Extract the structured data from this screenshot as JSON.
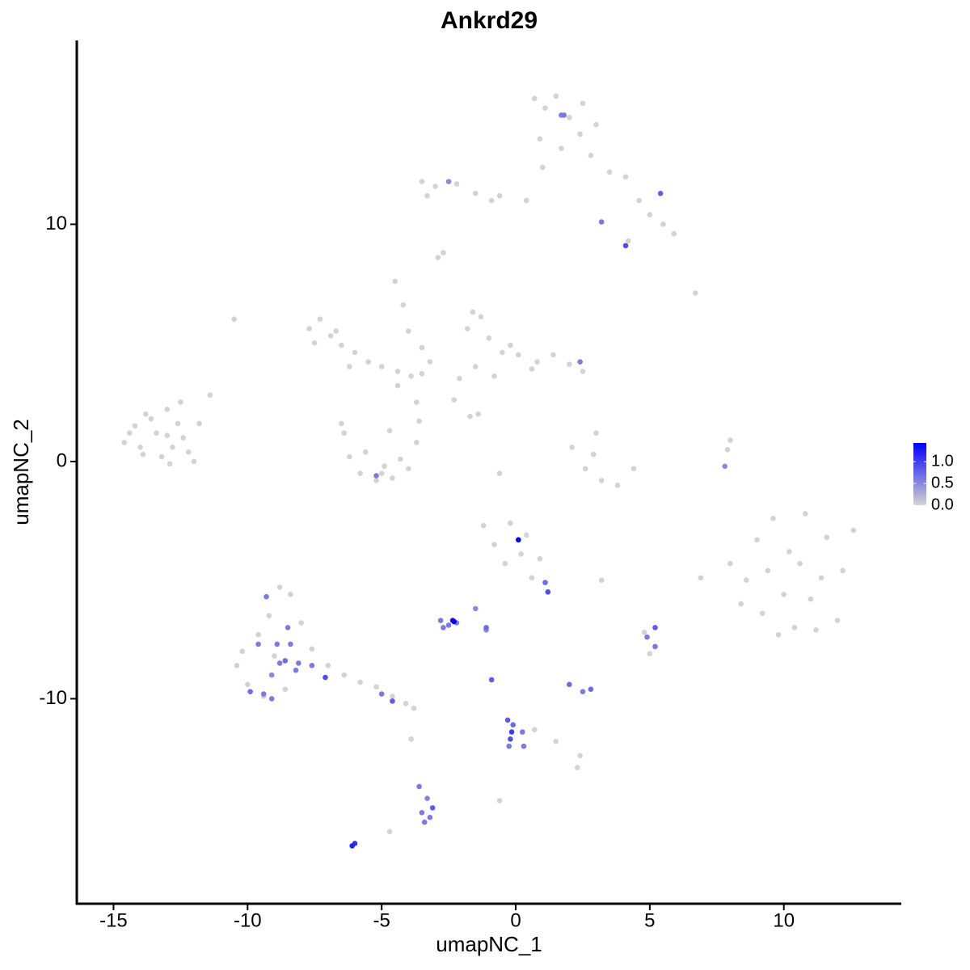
{
  "chart_data": {
    "type": "scatter",
    "title": "Ankrd29",
    "x_label": "umapNC_1",
    "y_label": "umapNC_2",
    "xlim": [
      -16.37,
      14.38
    ],
    "ylim": [
      -18.64,
      17.75
    ],
    "xticks": [
      -15,
      -10,
      -5,
      0,
      5,
      10
    ],
    "yticks": [
      -10,
      0,
      10
    ],
    "colorscale": [
      "#d3d3d3",
      "#0000ff"
    ],
    "colorlim": [
      0,
      1.43
    ],
    "colorticks": [
      {
        "value": 0,
        "label": "0.0"
      },
      {
        "value": 0.5,
        "label": "0.5"
      },
      {
        "value": 1,
        "label": "1.0"
      }
    ],
    "x": [
      -14.6,
      -14.2,
      -13.8,
      -13.4,
      -13.0,
      -12.6,
      -12.2,
      -14.0,
      -13.2,
      -12.4,
      -13.6,
      -12.8,
      -14.4,
      -12.0,
      -11.8,
      -11.4,
      -13.0,
      -12.5,
      -13.9,
      -12.9,
      -7.7,
      -7.3,
      -6.9,
      -6.5,
      -6.0,
      -5.5,
      -5.0,
      -4.4,
      -3.9,
      -3.5,
      -7.5,
      -6.7,
      -4.5,
      -4.2,
      -4.0,
      -3.5,
      -3.2,
      -4.4,
      -6.2,
      -3.7,
      -6.4,
      -6.2,
      -5.8,
      -5.2,
      -4.6,
      -4.0,
      -3.7,
      -5.6,
      -4.9,
      -4.3,
      -6.5,
      -3.6,
      -5.0,
      -4.7,
      -1.8,
      -1.3,
      -1.0,
      -0.5,
      0.1,
      0.8,
      1.4,
      2.0,
      2.5,
      -1.5,
      -0.8,
      -0.2,
      0.6,
      -2.1,
      -2.3,
      -1.6,
      0.7,
      1.1,
      1.5,
      2.0,
      2.5,
      3.0,
      0.9,
      1.7,
      2.4,
      2.8,
      3.5,
      4.1,
      4.6,
      5.0,
      5.5,
      5.9,
      4.2,
      1.0,
      0.4,
      -0.6,
      -1.5,
      -2.2,
      -3.0,
      -3.5,
      -3.3,
      -2.9,
      -2.7,
      -10.5,
      6.7,
      -0.9,
      8.0,
      8.6,
      9.2,
      9.8,
      10.4,
      11.0,
      11.6,
      12.2,
      12.6,
      8.4,
      9.0,
      9.6,
      10.2,
      10.8,
      11.4,
      12.0,
      10.0,
      11.2,
      9.4,
      10.6,
      -1.2,
      -0.8,
      -0.2,
      0.4,
      0.9,
      -0.4,
      0.2,
      2.1,
      2.6,
      3.2,
      3.8,
      4.4,
      3.0,
      2.9,
      -1.4,
      -1.7,
      -0.6,
      6.9,
      7.9,
      8.0,
      -10.4,
      -10.0,
      -9.6,
      -9.2,
      -8.8,
      -8.4,
      -8.0,
      -9.0,
      -8.6,
      -7.6,
      -7.0,
      -6.4,
      -5.8,
      -5.2,
      -4.6,
      -4.1,
      -3.8,
      -9.4,
      -10.2,
      -3.9,
      1.5,
      2.4,
      2.3,
      0.7,
      -0.6,
      3.2,
      5.0,
      4.8,
      -4.7,
      0.6,
      -2.8,
      -2.5,
      -2.2,
      -2.7,
      -2.35,
      -2.3,
      -1.5,
      -1.1,
      -3.6,
      -3.3,
      -3.5,
      -3.2,
      -3.4,
      -3.1,
      -6.0,
      -6.1,
      0.1,
      1.1,
      1.2,
      -0.9,
      -0.3,
      -0.15,
      -0.2,
      -0.25,
      2.0,
      2.5,
      2.8,
      5.2,
      4.9,
      5.2,
      1.7,
      1.8,
      -2.5,
      5.4,
      3.2,
      4.1,
      2.4,
      7.8,
      -5.2,
      -9.3,
      -9.6,
      -8.9,
      -8.5,
      -8.1,
      -9.1,
      -8.6,
      -9.9,
      -7.6,
      -7.1,
      -9.4,
      -9.1,
      -5.0,
      -4.6,
      -8.4,
      -8.8,
      -8.2,
      -1.1,
      0.3,
      0.25,
      -0.1
    ],
    "y": [
      0.8,
      1.5,
      2.0,
      1.2,
      2.2,
      1.6,
      0.4,
      0.6,
      0.2,
      1.0,
      1.8,
      0.6,
      1.2,
      0.0,
      1.6,
      2.8,
      1.1,
      2.5,
      0.3,
      -0.1,
      5.6,
      6.0,
      5.3,
      4.9,
      4.6,
      4.2,
      4.0,
      3.8,
      3.6,
      3.7,
      5.0,
      5.5,
      7.6,
      6.6,
      5.5,
      4.8,
      4.2,
      3.2,
      4.0,
      2.5,
      1.2,
      0.2,
      -0.5,
      -0.8,
      -0.7,
      -0.3,
      0.8,
      0.4,
      -0.2,
      0.1,
      1.6,
      1.7,
      -0.5,
      1.3,
      5.6,
      6.1,
      5.2,
      4.6,
      4.5,
      4.2,
      4.5,
      4.1,
      3.8,
      4.0,
      3.6,
      4.9,
      3.9,
      3.5,
      2.6,
      6.3,
      15.3,
      14.9,
      15.4,
      14.5,
      15.1,
      14.2,
      13.6,
      13.2,
      13.8,
      12.9,
      12.2,
      12.0,
      11.0,
      10.4,
      10.0,
      9.6,
      9.3,
      12.4,
      11.0,
      11.2,
      11.3,
      11.7,
      11.6,
      11.8,
      11.2,
      8.6,
      8.8,
      6.0,
      7.1,
      11.0,
      -4.3,
      -5.0,
      -6.4,
      -7.3,
      -7.0,
      -5.8,
      -3.2,
      -4.6,
      -2.9,
      -6.0,
      -3.3,
      -2.4,
      -3.8,
      -2.2,
      -4.9,
      -6.7,
      -5.6,
      -7.1,
      -4.6,
      -4.3,
      -2.7,
      -3.5,
      -2.6,
      -3.1,
      -4.1,
      -4.3,
      -3.9,
      0.6,
      -0.3,
      -0.8,
      -1.0,
      -0.3,
      1.2,
      0.3,
      2.0,
      1.9,
      -0.5,
      -4.9,
      0.5,
      0.9,
      -8.6,
      -9.4,
      -7.3,
      -6.5,
      -5.3,
      -5.6,
      -6.8,
      -8.2,
      -9.6,
      -7.9,
      -8.6,
      -9.0,
      -9.3,
      -9.5,
      -9.9,
      -10.2,
      -10.4,
      -9.9,
      -8.0,
      -11.7,
      -11.8,
      -12.4,
      -12.9,
      -11.3,
      -14.3,
      -5.0,
      -8.1,
      -7.2,
      -15.6,
      -4.9,
      -6.7,
      -6.9,
      -6.8,
      -7.0,
      -6.7,
      -6.75,
      -6.2,
      -7.1,
      -13.7,
      -14.2,
      -14.8,
      -15.0,
      -15.2,
      -14.6,
      -16.1,
      -16.2,
      -3.3,
      -5.1,
      -5.5,
      -9.2,
      -10.9,
      -11.4,
      -11.7,
      -12.0,
      -9.4,
      -9.7,
      -9.6,
      -7.0,
      -7.4,
      -7.8,
      14.6,
      14.6,
      11.8,
      11.3,
      10.1,
      9.1,
      4.2,
      -0.2,
      -0.6,
      -5.7,
      -7.7,
      -7.7,
      -7.0,
      -8.5,
      -9.0,
      -8.4,
      -9.7,
      -8.6,
      -9.1,
      -9.8,
      -10.0,
      -9.8,
      -10.1,
      -7.7,
      -8.5,
      -8.8,
      -7.0,
      -12.0,
      -11.4,
      -11.1
    ],
    "values": [
      0,
      0,
      0,
      0,
      0,
      0,
      0,
      0,
      0,
      0,
      0,
      0,
      0,
      0,
      0,
      0,
      0,
      0,
      0,
      0,
      0,
      0,
      0,
      0,
      0,
      0,
      0,
      0,
      0,
      0,
      0,
      0,
      0,
      0,
      0,
      0,
      0,
      0,
      0,
      0,
      0,
      0,
      0,
      0,
      0,
      0,
      0,
      0,
      0,
      0,
      0,
      0,
      0,
      0,
      0,
      0,
      0,
      0,
      0,
      0,
      0,
      0,
      0,
      0,
      0,
      0,
      0,
      0,
      0,
      0,
      0,
      0,
      0,
      0,
      0,
      0,
      0,
      0,
      0,
      0,
      0,
      0,
      0,
      0,
      0,
      0,
      0,
      0,
      0,
      0,
      0,
      0,
      0,
      0,
      0,
      0,
      0,
      0,
      0,
      0,
      0,
      0,
      0,
      0,
      0,
      0,
      0,
      0,
      0,
      0,
      0,
      0,
      0,
      0,
      0,
      0,
      0,
      0,
      0,
      0,
      0,
      0,
      0,
      0,
      0,
      0,
      0,
      0,
      0,
      0,
      0,
      0,
      0,
      0,
      0,
      0,
      0,
      0,
      0,
      0,
      0,
      0,
      0,
      0,
      0,
      0,
      0,
      0,
      0,
      0,
      0,
      0,
      0,
      0,
      0,
      0,
      0,
      0,
      0,
      0,
      0,
      0,
      0,
      0,
      0,
      0,
      0,
      0,
      0,
      0,
      0.6,
      0.6,
      0.55,
      0.6,
      1.3,
      1.4,
      0.5,
      0.5,
      0.6,
      0.55,
      0.6,
      0.6,
      0.6,
      0.8,
      1.1,
      1.2,
      1.4,
      0.7,
      0.9,
      0.8,
      0.8,
      1.0,
      0.9,
      0.6,
      0.7,
      0.6,
      0.7,
      0.8,
      0.6,
      0.6,
      0.6,
      0.6,
      0.5,
      0.8,
      0.6,
      0.9,
      0.6,
      0.5,
      0.6,
      0.6,
      0.6,
      0.6,
      0.6,
      0.6,
      0.5,
      0.7,
      0.7,
      0.6,
      0.9,
      0.6,
      0.6,
      0.6,
      0.8,
      0.6,
      0.6,
      0.6,
      0.7,
      0.6,
      0.6,
      0.7
    ]
  }
}
